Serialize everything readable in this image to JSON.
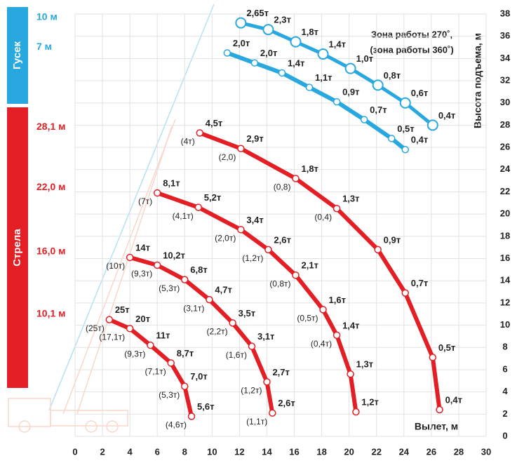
{
  "chart_data": {
    "type": "line",
    "x_label": "Вылет, м",
    "y_label": "Высота подъема, м",
    "annotations": [
      "Зона работы 270˚,",
      "(зона работы 360˚)"
    ],
    "groups": [
      {
        "name": "Гусек",
        "color": "#29a8e0"
      },
      {
        "name": "Стрела",
        "color": "#e31e24"
      }
    ],
    "xlim": [
      0,
      30
    ],
    "xticks": [
      0,
      2,
      4,
      6,
      8,
      10,
      12,
      14,
      16,
      18,
      20,
      22,
      24,
      26,
      28,
      30
    ],
    "ylim": [
      0,
      38
    ],
    "yticks": [
      0,
      2,
      4,
      6,
      8,
      10,
      12,
      14,
      16,
      18,
      20,
      22,
      24,
      26,
      28,
      30,
      32,
      34,
      36,
      38
    ],
    "grid": true,
    "series": [
      {
        "name": "10 м",
        "group": 0,
        "color": "#29a8e0",
        "marker": "large",
        "x": [
          12.1,
          14.1,
          16.1,
          18.1,
          20.1,
          22.1,
          24.1,
          26.1
        ],
        "values": [
          37.2,
          36.6,
          35.5,
          34.4,
          33.1,
          31.6,
          30.0,
          28.0
        ],
        "load_labels": [
          "2,65т",
          "2,3т",
          "1,8т",
          "1,4т",
          "1,0т",
          "0,8т",
          "0,6т",
          "0,4т"
        ],
        "load_labels_360": [
          null,
          null,
          null,
          null,
          null,
          null,
          null,
          null
        ]
      },
      {
        "name": "7 м",
        "group": 0,
        "color": "#29a8e0",
        "marker": "small",
        "x": [
          11.1,
          13.1,
          15.1,
          17.1,
          19.1,
          21.1,
          23.1,
          24.1
        ],
        "values": [
          34.5,
          33.6,
          32.7,
          31.4,
          30.1,
          28.5,
          26.8,
          25.8
        ],
        "load_labels": [
          "2,0т",
          "2,0т",
          "1,4т",
          "1,1т",
          "0,9т",
          "0,7т",
          "0,5т",
          "0,4т"
        ],
        "load_labels_360": [
          null,
          null,
          null,
          null,
          null,
          null,
          null,
          null
        ]
      },
      {
        "name": "28,1 м",
        "group": 1,
        "color": "#e31e24",
        "marker": "small",
        "x": [
          9.1,
          12.1,
          16.1,
          19.1,
          22.1,
          24.1,
          26.1,
          26.6
        ],
        "values": [
          27.3,
          25.9,
          23.2,
          20.5,
          16.8,
          12.9,
          7.1,
          2.4
        ],
        "load_labels": [
          "4,5т",
          "2,9т",
          "1,8т",
          "1,3т",
          "0,9т",
          "0,7т",
          "0,5т",
          "0,4т"
        ],
        "load_labels_360": [
          "(4т)",
          "(2,0)",
          "(0,8)",
          "(0,4)",
          null,
          null,
          null,
          null
        ]
      },
      {
        "name": "22,0 м",
        "group": 1,
        "color": "#e31e24",
        "marker": "small",
        "x": [
          6.0,
          9.0,
          12.1,
          14.1,
          16.1,
          18.1,
          19.1,
          20.1,
          20.5
        ],
        "values": [
          21.9,
          20.6,
          18.6,
          16.8,
          14.5,
          11.4,
          9.1,
          5.6,
          2.2
        ],
        "load_labels": [
          "8,1т",
          "5,2т",
          "3,4т",
          "2,6т",
          "2,1т",
          "1,6т",
          "1,4т",
          "1,3т",
          "1,2т"
        ],
        "load_labels_360": [
          "(7т)",
          "(4,1т)",
          "(2,0т)",
          "(1,2т)",
          "(0,8т)",
          "(0,5т)",
          "(0,4т)",
          null,
          null
        ]
      },
      {
        "name": "16,0 м",
        "group": 1,
        "color": "#e31e24",
        "marker": "small",
        "x": [
          4.0,
          6.0,
          8.0,
          9.8,
          11.5,
          12.9,
          14.0,
          14.4
        ],
        "values": [
          16.1,
          15.4,
          14.1,
          12.3,
          10.2,
          8.1,
          4.9,
          2.1
        ],
        "load_labels": [
          "14т",
          "10,2т",
          "6,8т",
          "4,7т",
          "3,5т",
          "3,1т",
          "2,7т",
          "2,6т"
        ],
        "load_labels_360": [
          "(10т)",
          "(9,3т)",
          "(5,3т)",
          "(3,1т)",
          "(2,2т)",
          "(1,6т)",
          "(1,2т)",
          "(1,1т)"
        ]
      },
      {
        "name": "10,1 м",
        "group": 1,
        "color": "#e31e24",
        "marker": "small",
        "x": [
          2.5,
          4.0,
          5.5,
          7.0,
          8.0,
          8.5
        ],
        "values": [
          10.5,
          9.7,
          8.2,
          6.6,
          4.5,
          1.8
        ],
        "load_labels": [
          "25т",
          "20т",
          "11т",
          "8,7т",
          "7,0т",
          "5,6т"
        ],
        "load_labels_360": [
          "(25т)",
          "(17,1т)",
          "(9,3т)",
          "(7,1т)",
          "(5,3т)",
          "(4,6т)"
        ]
      }
    ]
  }
}
